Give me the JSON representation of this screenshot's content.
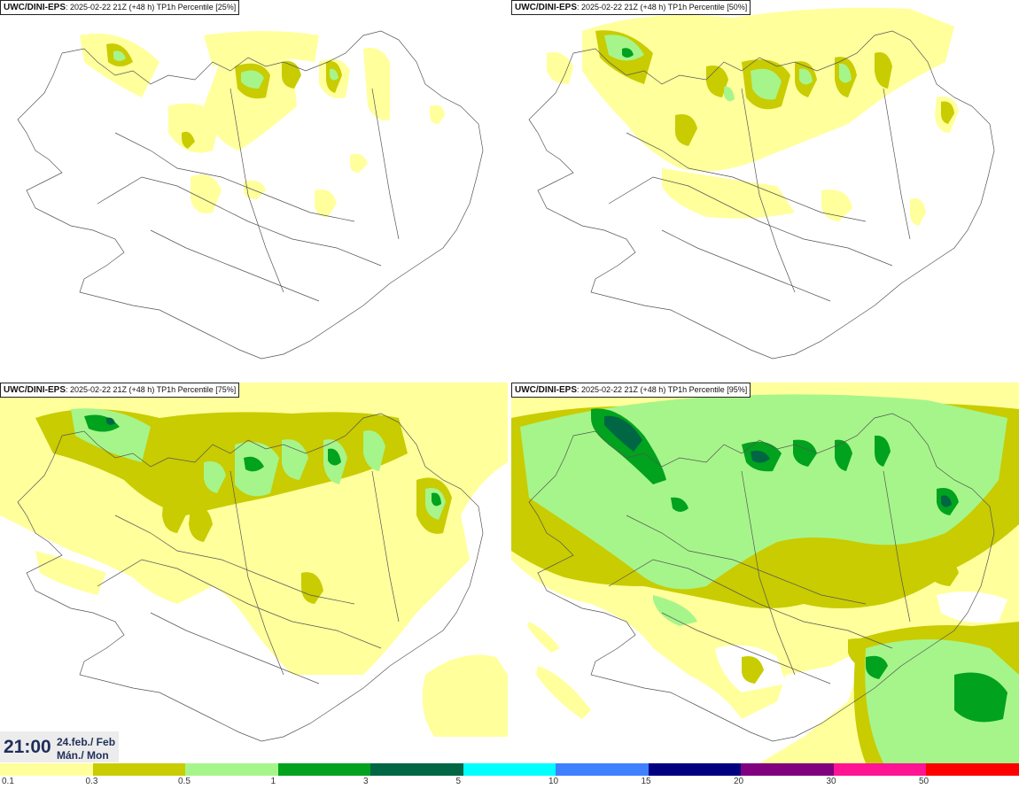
{
  "panels": [
    {
      "model": "UWC/DINI-EPS",
      "info": ": 2025-02-22 21Z (+48 h)",
      "product": "TP1h Percentile [25%]"
    },
    {
      "model": "UWC/DINI-EPS",
      "info": ": 2025-02-22 21Z (+48 h)",
      "product": "TP1h Percentile [50%]"
    },
    {
      "model": "UWC/DINI-EPS",
      "info": ": 2025-02-22 21Z (+48 h)",
      "product": "TP1h Percentile [75%]"
    },
    {
      "model": "UWC/DINI-EPS",
      "info": ": 2025-02-22 21Z (+48 h)",
      "product": "TP1h Percentile [95%]"
    }
  ],
  "valid_time": {
    "time": "21:00",
    "date_line1": "24.feb./ Feb",
    "date_line2": "Mán./ Mon"
  },
  "legend": {
    "labels": [
      "0.1",
      "0.3",
      "0.5",
      "1",
      "3",
      "5",
      "10",
      "15",
      "20",
      "30",
      "50"
    ],
    "colors": [
      "#ffff9c",
      "#c8cc00",
      "#a6f58a",
      "#00a21e",
      "#006644",
      "#00ffff",
      "#3f80ff",
      "#000080",
      "#800080",
      "#ff1493",
      "#ff0000"
    ]
  }
}
